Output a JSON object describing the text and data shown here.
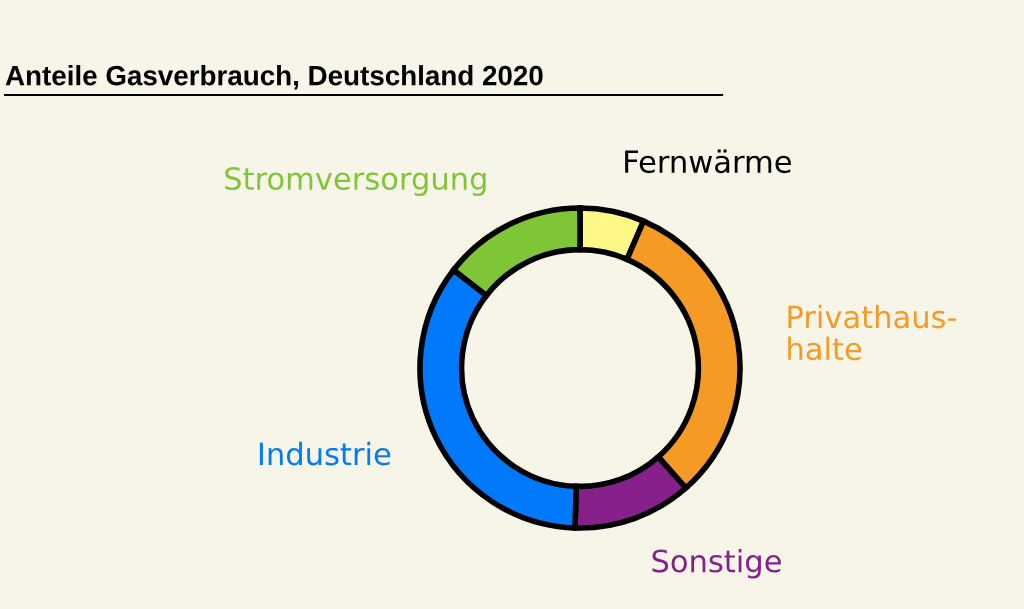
{
  "chart_data": {
    "type": "donut",
    "title": "Anteile Gasverbrauch, Deutschland 2020",
    "categories": [
      "Fernwärme",
      "Privathaus-\nhalte",
      "Sonstige",
      "Industrie",
      "Stromversorgung"
    ],
    "values": [
      6.5,
      32,
      12,
      35,
      14.5
    ],
    "colors": [
      "#fdf888",
      "#f59b25",
      "#86208a",
      "#0079fa",
      "#7ec636"
    ]
  }
}
